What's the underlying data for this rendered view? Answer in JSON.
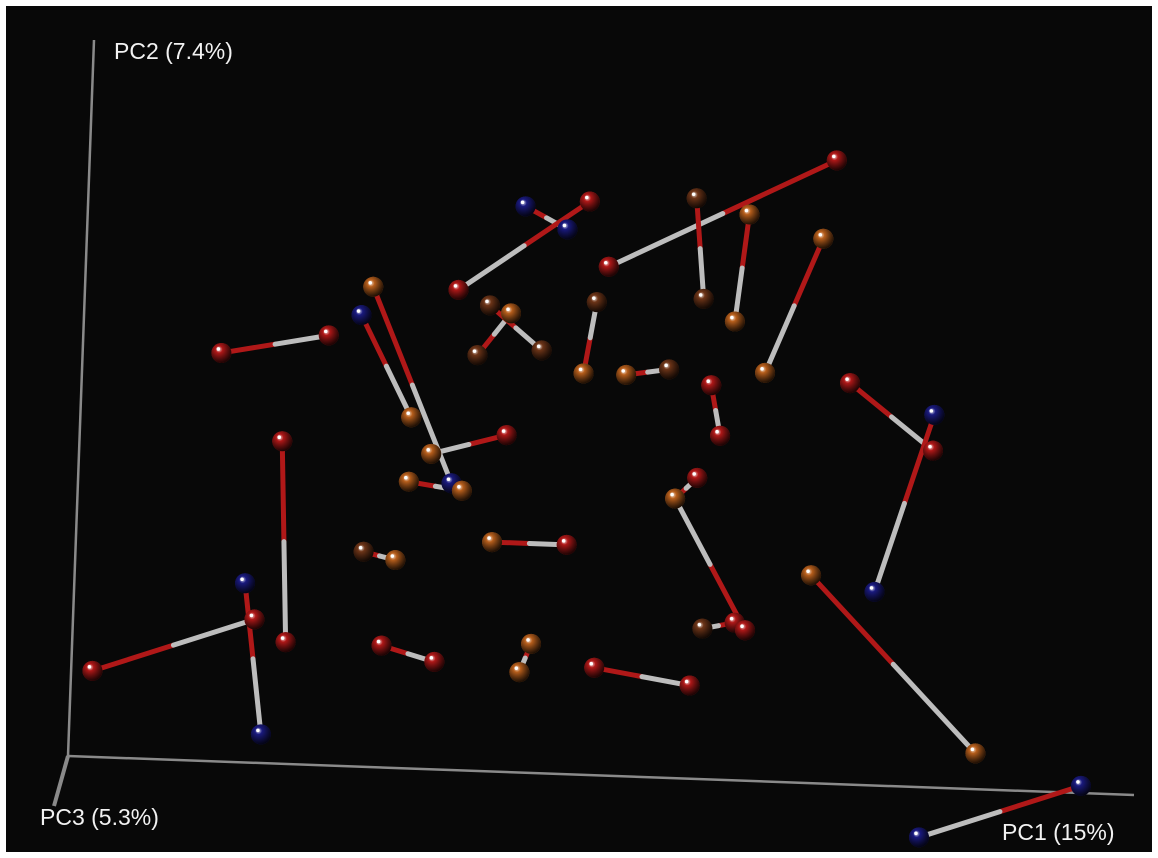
{
  "chart_data": {
    "type": "scatter",
    "variant": "3d-pcoa",
    "title": "",
    "axes": {
      "x": {
        "label": "PC1 (15%)"
      },
      "y": {
        "label": "PC2 (7.4%)"
      },
      "z": {
        "label": "PC3 (5.3%)"
      }
    },
    "grid": false,
    "legend": "none",
    "group_colors": {
      "red": "#b01818",
      "orange": "#b85f1c",
      "brown": "#6e3518",
      "blue": "#1a1a80"
    },
    "connector_colors": {
      "near": "#b01818",
      "far": "#bdbdbd"
    },
    "points": [
      {
        "id": "p1",
        "pc1": 0.7,
        "pc2": 0.87,
        "group": "red"
      },
      {
        "id": "p2",
        "pc1": 0.49,
        "pc2": 0.71,
        "group": "red"
      },
      {
        "id": "p3",
        "pc1": 0.57,
        "pc2": 0.81,
        "group": "brown"
      },
      {
        "id": "p4",
        "pc1": 0.58,
        "pc2": 0.67,
        "group": "brown"
      },
      {
        "id": "p5",
        "pc1": 0.62,
        "pc2": 0.79,
        "group": "orange"
      },
      {
        "id": "p6",
        "pc1": 0.61,
        "pc2": 0.64,
        "group": "orange"
      },
      {
        "id": "p7",
        "pc1": 0.69,
        "pc2": 0.76,
        "group": "orange"
      },
      {
        "id": "p8",
        "pc1": 0.64,
        "pc2": 0.57,
        "group": "orange"
      },
      {
        "id": "p9",
        "pc1": 0.41,
        "pc2": 0.79,
        "group": "blue"
      },
      {
        "id": "p10",
        "pc1": 0.45,
        "pc2": 0.76,
        "group": "blue"
      },
      {
        "id": "p11",
        "pc1": 0.47,
        "pc2": 0.8,
        "group": "red"
      },
      {
        "id": "p12",
        "pc1": 0.35,
        "pc2": 0.67,
        "group": "red"
      },
      {
        "id": "p13",
        "pc1": 0.13,
        "pc2": 0.57,
        "group": "red"
      },
      {
        "id": "p14",
        "pc1": 0.23,
        "pc2": 0.6,
        "group": "red"
      },
      {
        "id": "p15",
        "pc1": 0.19,
        "pc2": 0.45,
        "group": "red"
      },
      {
        "id": "p16",
        "pc1": 0.2,
        "pc2": 0.17,
        "group": "red"
      },
      {
        "id": "p17",
        "pc1": 0.16,
        "pc2": 0.25,
        "group": "blue"
      },
      {
        "id": "p18",
        "pc1": 0.18,
        "pc2": 0.04,
        "group": "blue"
      },
      {
        "id": "p19",
        "pc1": 0.02,
        "pc2": 0.12,
        "group": "red"
      },
      {
        "id": "p20",
        "pc1": 0.17,
        "pc2": 0.2,
        "group": "red"
      },
      {
        "id": "p21",
        "pc1": 0.27,
        "pc2": 0.67,
        "group": "orange"
      },
      {
        "id": "p22",
        "pc1": 0.35,
        "pc2": 0.4,
        "group": "blue"
      },
      {
        "id": "p23",
        "pc1": 0.26,
        "pc2": 0.63,
        "group": "blue"
      },
      {
        "id": "p24",
        "pc1": 0.31,
        "pc2": 0.49,
        "group": "orange"
      },
      {
        "id": "p25",
        "pc1": 0.37,
        "pc2": 0.58,
        "group": "brown"
      },
      {
        "id": "p26",
        "pc1": 0.4,
        "pc2": 0.64,
        "group": "orange"
      },
      {
        "id": "p27",
        "pc1": 0.38,
        "pc2": 0.65,
        "group": "brown"
      },
      {
        "id": "p28",
        "pc1": 0.43,
        "pc2": 0.59,
        "group": "brown"
      },
      {
        "id": "p29",
        "pc1": 0.47,
        "pc2": 0.56,
        "group": "orange"
      },
      {
        "id": "p30",
        "pc1": 0.48,
        "pc2": 0.66,
        "group": "brown"
      },
      {
        "id": "p31",
        "pc1": 0.51,
        "pc2": 0.56,
        "group": "orange"
      },
      {
        "id": "p32",
        "pc1": 0.55,
        "pc2": 0.57,
        "group": "brown"
      },
      {
        "id": "p33",
        "pc1": 0.59,
        "pc2": 0.55,
        "group": "red"
      },
      {
        "id": "p34",
        "pc1": 0.6,
        "pc2": 0.48,
        "group": "red"
      },
      {
        "id": "p35",
        "pc1": 0.31,
        "pc2": 0.4,
        "group": "orange"
      },
      {
        "id": "p36",
        "pc1": 0.36,
        "pc2": 0.39,
        "group": "orange"
      },
      {
        "id": "p37",
        "pc1": 0.4,
        "pc2": 0.47,
        "group": "red"
      },
      {
        "id": "p38",
        "pc1": 0.33,
        "pc2": 0.44,
        "group": "orange"
      },
      {
        "id": "p39",
        "pc1": 0.39,
        "pc2": 0.32,
        "group": "orange"
      },
      {
        "id": "p40",
        "pc1": 0.46,
        "pc2": 0.32,
        "group": "red"
      },
      {
        "id": "p41",
        "pc1": 0.27,
        "pc2": 0.3,
        "group": "brown"
      },
      {
        "id": "p42",
        "pc1": 0.3,
        "pc2": 0.29,
        "group": "orange"
      },
      {
        "id": "p43",
        "pc1": 0.43,
        "pc2": 0.18,
        "group": "orange"
      },
      {
        "id": "p44",
        "pc1": 0.42,
        "pc2": 0.14,
        "group": "orange"
      },
      {
        "id": "p45",
        "pc1": 0.29,
        "pc2": 0.17,
        "group": "red"
      },
      {
        "id": "p46",
        "pc1": 0.34,
        "pc2": 0.15,
        "group": "red"
      },
      {
        "id": "p47",
        "pc1": 0.49,
        "pc2": 0.15,
        "group": "red"
      },
      {
        "id": "p48",
        "pc1": 0.58,
        "pc2": 0.13,
        "group": "red"
      },
      {
        "id": "p49",
        "pc1": 0.56,
        "pc2": 0.39,
        "group": "orange"
      },
      {
        "id": "p50",
        "pc1": 0.58,
        "pc2": 0.42,
        "group": "red"
      },
      {
        "id": "p51",
        "pc1": 0.62,
        "pc2": 0.22,
        "group": "red"
      },
      {
        "id": "p52",
        "pc1": 0.59,
        "pc2": 0.21,
        "group": "brown"
      },
      {
        "id": "p53",
        "pc1": 0.63,
        "pc2": 0.21,
        "group": "red"
      },
      {
        "id": "p54",
        "pc1": 0.72,
        "pc2": 0.56,
        "group": "red"
      },
      {
        "id": "p55",
        "pc1": 0.8,
        "pc2": 0.47,
        "group": "red"
      },
      {
        "id": "p56",
        "pc1": 0.8,
        "pc2": 0.52,
        "group": "blue"
      },
      {
        "id": "p57",
        "pc1": 0.75,
        "pc2": 0.27,
        "group": "blue"
      },
      {
        "id": "p58",
        "pc1": 0.69,
        "pc2": 0.29,
        "group": "orange"
      },
      {
        "id": "p59",
        "pc1": 0.85,
        "pc2": 0.05,
        "group": "orange"
      },
      {
        "id": "p60",
        "pc1": 0.95,
        "pc2": 0.01,
        "group": "blue"
      },
      {
        "id": "p61",
        "pc1": 0.8,
        "pc2": -0.07,
        "group": "blue"
      }
    ],
    "pairs": [
      [
        "p1",
        "p2"
      ],
      [
        "p3",
        "p4"
      ],
      [
        "p5",
        "p6"
      ],
      [
        "p7",
        "p8"
      ],
      [
        "p9",
        "p10"
      ],
      [
        "p11",
        "p12"
      ],
      [
        "p13",
        "p14"
      ],
      [
        "p15",
        "p16"
      ],
      [
        "p17",
        "p18"
      ],
      [
        "p19",
        "p20"
      ],
      [
        "p21",
        "p22"
      ],
      [
        "p23",
        "p24"
      ],
      [
        "p25",
        "p26"
      ],
      [
        "p27",
        "p28"
      ],
      [
        "p29",
        "p30"
      ],
      [
        "p31",
        "p32"
      ],
      [
        "p33",
        "p34"
      ],
      [
        "p35",
        "p36"
      ],
      [
        "p37",
        "p38"
      ],
      [
        "p39",
        "p40"
      ],
      [
        "p41",
        "p42"
      ],
      [
        "p43",
        "p44"
      ],
      [
        "p45",
        "p46"
      ],
      [
        "p47",
        "p48"
      ],
      [
        "p49",
        "p50"
      ],
      [
        "p51",
        "p52"
      ],
      [
        "p53",
        "p49"
      ],
      [
        "p54",
        "p55"
      ],
      [
        "p56",
        "p57"
      ],
      [
        "p58",
        "p59"
      ],
      [
        "p60",
        "p61"
      ]
    ]
  }
}
